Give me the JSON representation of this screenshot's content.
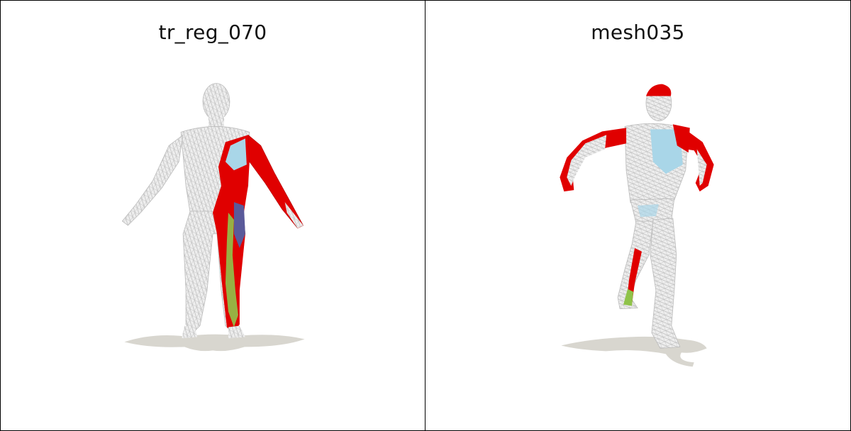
{
  "panels": [
    {
      "title": "tr_reg_070"
    },
    {
      "title": "mesh035"
    }
  ],
  "colors": {
    "mesh_base": "#ececec",
    "mesh_wire": "#b5b5b5",
    "red": "#e00000",
    "light_blue": "#a9d6e8",
    "purple": "#5a5a9a",
    "green": "#8fc34a",
    "shadow": "#d8d6cf",
    "border": "#000000"
  },
  "icons": [
    "wireframe-mesh-figure",
    "ground-shadow"
  ]
}
